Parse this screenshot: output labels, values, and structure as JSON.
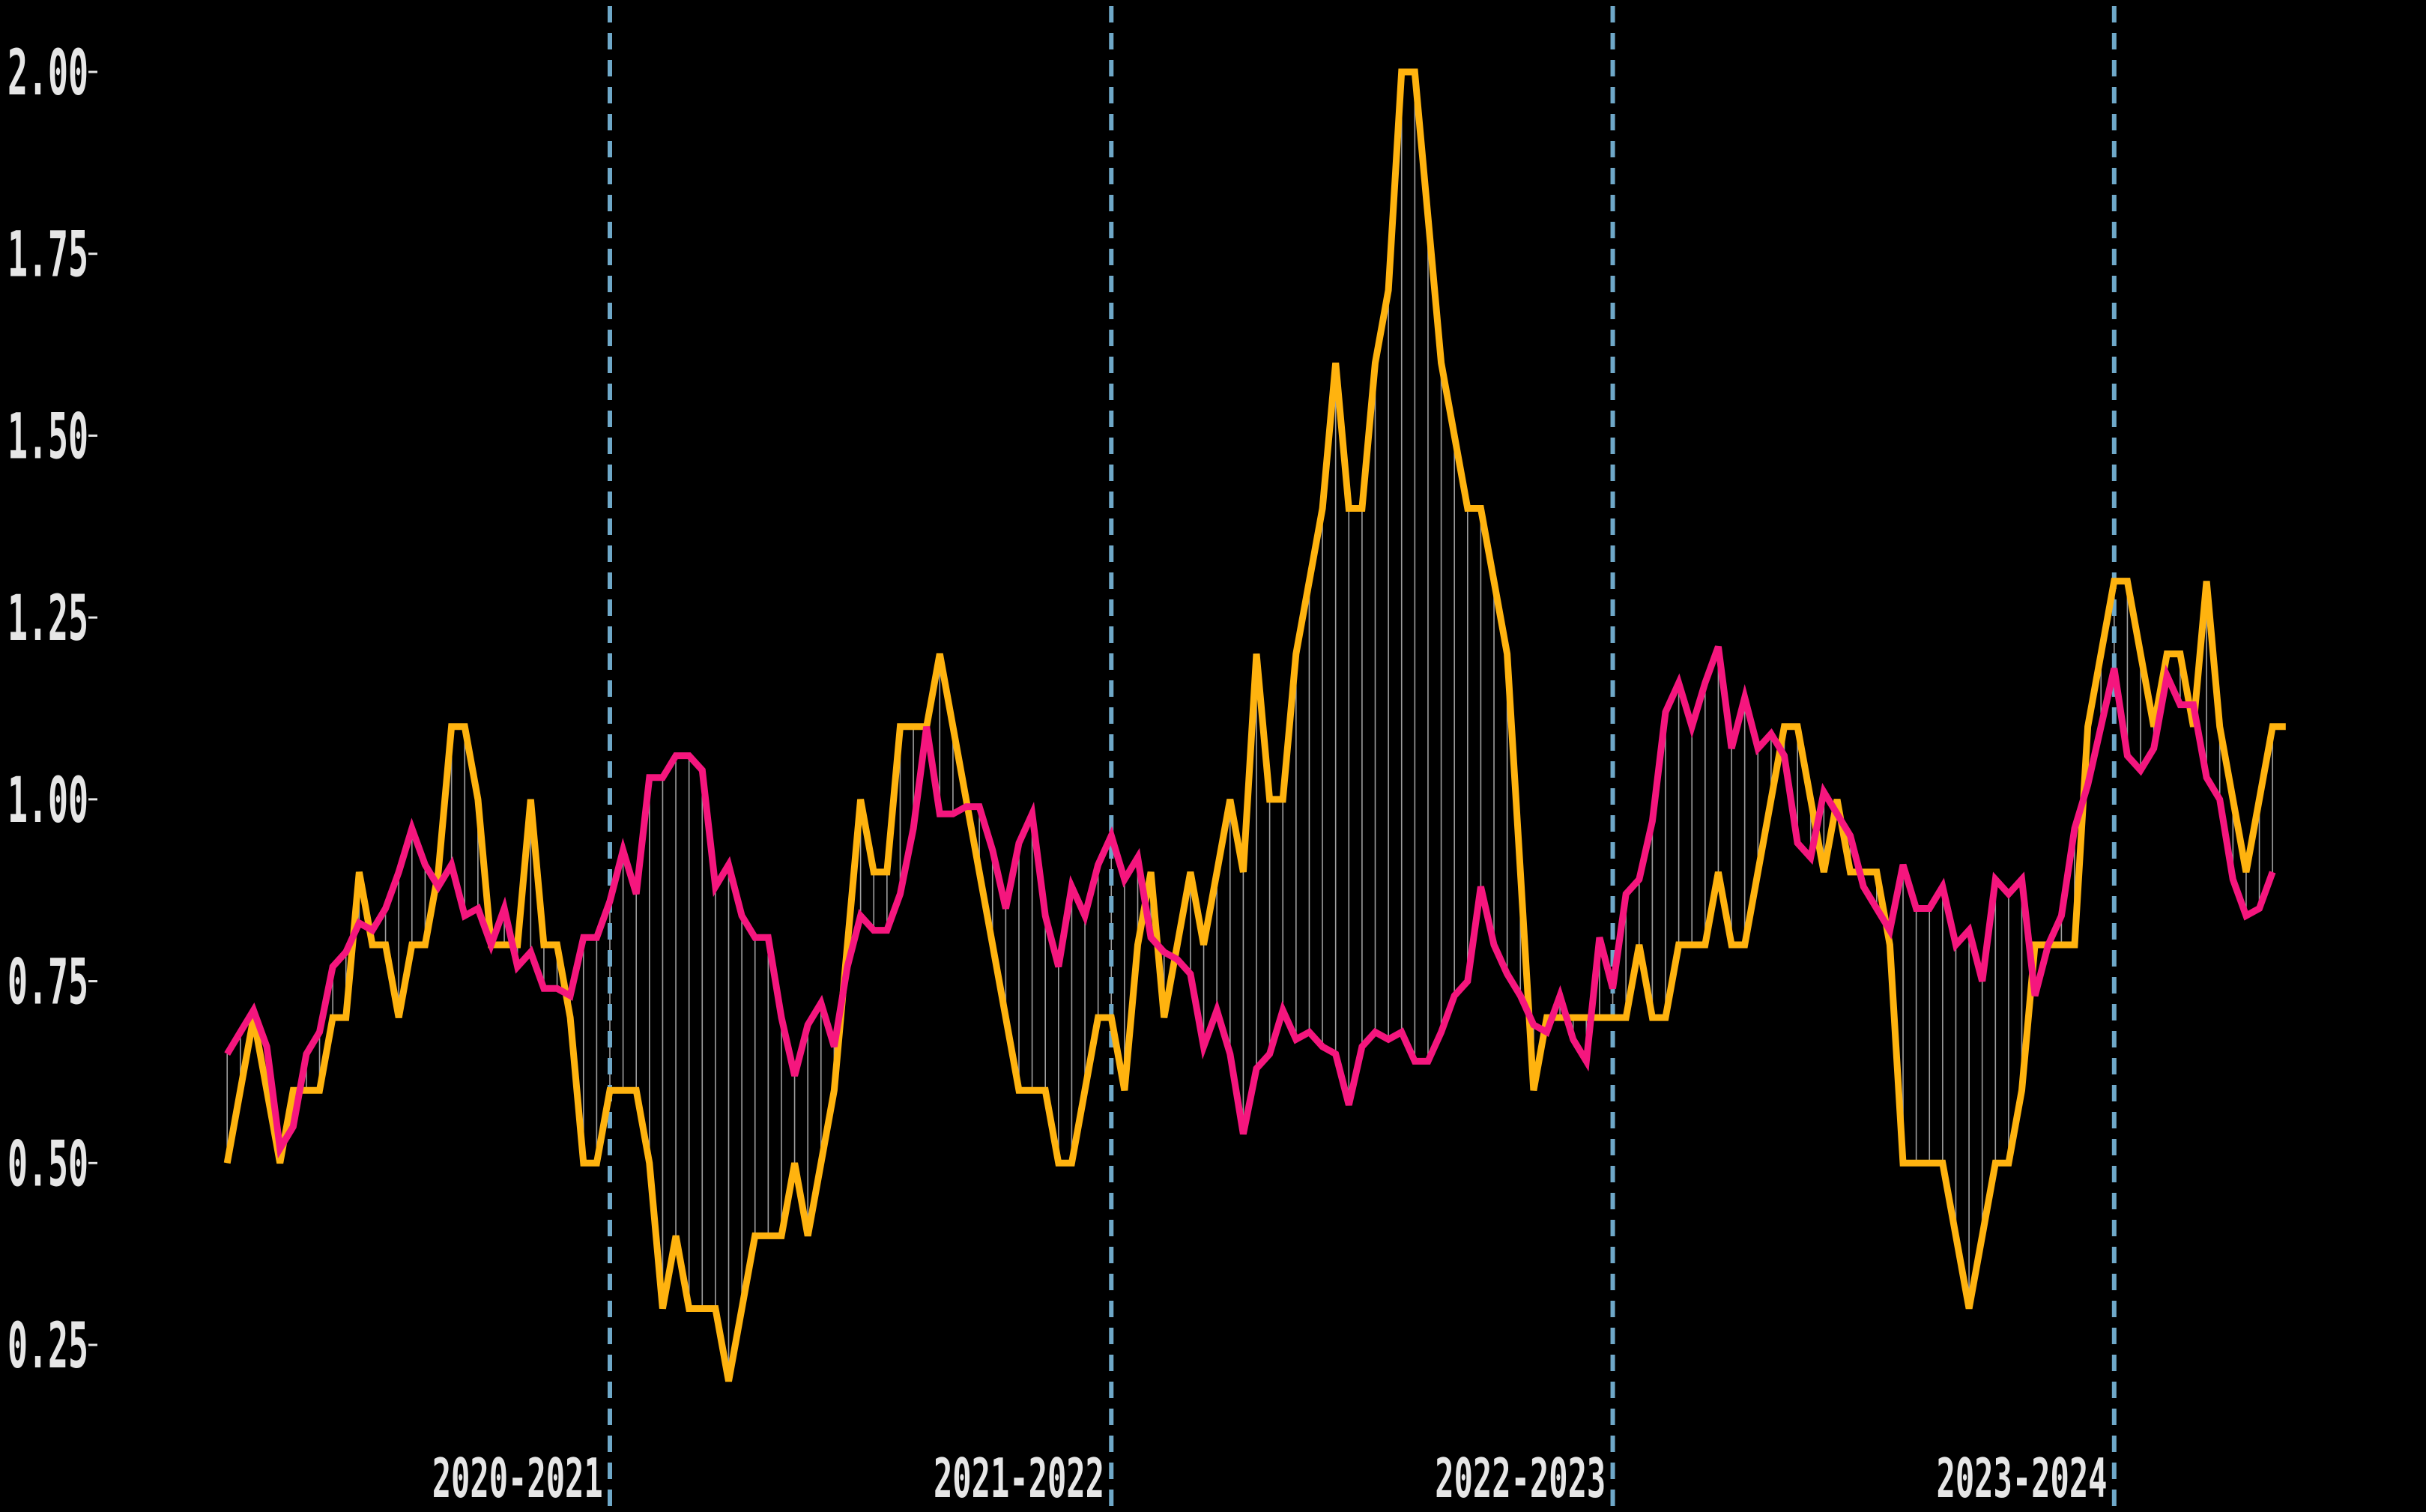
{
  "chart_data": {
    "type": "line",
    "title": "",
    "xlabel": "",
    "ylabel": "",
    "ylim": [
      0.12,
      2.08
    ],
    "yticks": [
      0.25,
      0.5,
      0.75,
      1.0,
      1.25,
      1.5,
      1.75,
      2.0
    ],
    "ytick_labels": [
      "0.25",
      "0.50",
      "0.75",
      "1.00",
      "1.25",
      "1.50",
      "1.75",
      "2.00"
    ],
    "grid": false,
    "legend": "none",
    "season_labels": [
      {
        "label": "2020-2021",
        "x": 22
      },
      {
        "label": "2021-2022",
        "x": 60
      },
      {
        "label": "2022-2023",
        "x": 98
      },
      {
        "label": "2023-2024",
        "x": 136
      }
    ],
    "season_dividers": [
      29,
      67,
      105,
      143
    ],
    "x_range": [
      -2,
      158
    ],
    "colors": {
      "background": "#000000",
      "orange_series": "#FFB30F",
      "pink_series": "#F5167E",
      "divider": "#6FA8C8",
      "fill_lines": "#BBBBBB",
      "ticks": "#E6E6E6"
    },
    "series": [
      {
        "color": "#FFB30F",
        "values": [
          0.5,
          0.6,
          0.7,
          0.6,
          0.5,
          0.6,
          0.6,
          0.6,
          0.7,
          0.7,
          0.9,
          0.8,
          0.8,
          0.7,
          0.8,
          0.8,
          0.9,
          1.1,
          1.1,
          1.0,
          0.8,
          0.8,
          0.8,
          1.0,
          0.8,
          0.8,
          0.7,
          0.5,
          0.5,
          0.6,
          0.6,
          0.6,
          0.5,
          0.3,
          0.4,
          0.3,
          0.3,
          0.3,
          0.2,
          0.3,
          0.4,
          0.4,
          0.4,
          0.5,
          0.4,
          0.5,
          0.6,
          0.8,
          1.0,
          0.9,
          0.9,
          1.1,
          1.1,
          1.1,
          1.2,
          1.1,
          1.0,
          0.9,
          0.8,
          0.7,
          0.6,
          0.6,
          0.6,
          0.5,
          0.5,
          0.6,
          0.7,
          0.7,
          0.6,
          0.8,
          0.9,
          0.7,
          0.8,
          0.9,
          0.8,
          0.9,
          1.0,
          0.9,
          1.2,
          1.0,
          1.0,
          1.2,
          1.3,
          1.4,
          1.6,
          1.4,
          1.4,
          1.6,
          1.7,
          2.0,
          2.0,
          1.8,
          1.6,
          1.5,
          1.4,
          1.4,
          1.3,
          1.2,
          0.9,
          0.6,
          0.7,
          0.7,
          0.7,
          0.7,
          0.7,
          0.7,
          0.7,
          0.8,
          0.7,
          0.7,
          0.8,
          0.8,
          0.8,
          0.9,
          0.8,
          0.8,
          0.9,
          1.0,
          1.1,
          1.1,
          1.0,
          0.9,
          1.0,
          0.9,
          0.9,
          0.9,
          0.8,
          0.5,
          0.5,
          0.5,
          0.5,
          0.4,
          0.3,
          0.4,
          0.5,
          0.5,
          0.6,
          0.8,
          0.8,
          0.8,
          0.8,
          1.1,
          1.2,
          1.3,
          1.3,
          1.2,
          1.1,
          1.2,
          1.2,
          1.1,
          1.3,
          1.1,
          1.0,
          0.9,
          1.0,
          1.1,
          1.1
        ]
      },
      {
        "color": "#F5167E",
        "values": [
          0.65,
          0.68,
          0.71,
          0.66,
          0.52,
          0.55,
          0.65,
          0.68,
          0.77,
          0.79,
          0.83,
          0.82,
          0.85,
          0.9,
          0.96,
          0.91,
          0.88,
          0.91,
          0.84,
          0.85,
          0.8,
          0.85,
          0.77,
          0.79,
          0.74,
          0.74,
          0.73,
          0.81,
          0.81,
          0.86,
          0.93,
          0.87,
          1.03,
          1.03,
          1.06,
          1.06,
          1.04,
          0.88,
          0.91,
          0.84,
          0.81,
          0.81,
          0.7,
          0.62,
          0.69,
          0.72,
          0.66,
          0.77,
          0.84,
          0.82,
          0.82,
          0.87,
          0.96,
          1.1,
          0.98,
          0.98,
          0.99,
          0.99,
          0.93,
          0.85,
          0.94,
          0.98,
          0.84,
          0.77,
          0.88,
          0.84,
          0.91,
          0.95,
          0.89,
          0.92,
          0.81,
          0.79,
          0.78,
          0.76,
          0.66,
          0.71,
          0.65,
          0.54,
          0.63,
          0.65,
          0.71,
          0.67,
          0.68,
          0.66,
          0.65,
          0.58,
          0.66,
          0.68,
          0.67,
          0.68,
          0.64,
          0.64,
          0.68,
          0.73,
          0.75,
          0.88,
          0.8,
          0.76,
          0.73,
          0.69,
          0.68,
          0.73,
          0.67,
          0.64,
          0.81,
          0.74,
          0.87,
          0.89,
          0.97,
          1.12,
          1.16,
          1.1,
          1.16,
          1.21,
          1.07,
          1.14,
          1.07,
          1.09,
          1.06,
          0.94,
          0.92,
          1.01,
          0.98,
          0.95,
          0.88,
          0.85,
          0.82,
          0.91,
          0.85,
          0.85,
          0.88,
          0.8,
          0.82,
          0.75,
          0.89,
          0.87,
          0.89,
          0.73,
          0.8,
          0.84,
          0.96,
          1.02,
          1.1,
          1.18,
          1.06,
          1.04,
          1.07,
          1.17,
          1.13,
          1.13,
          1.03,
          1.0,
          0.89,
          0.84,
          0.85,
          0.9
        ]
      }
    ]
  }
}
